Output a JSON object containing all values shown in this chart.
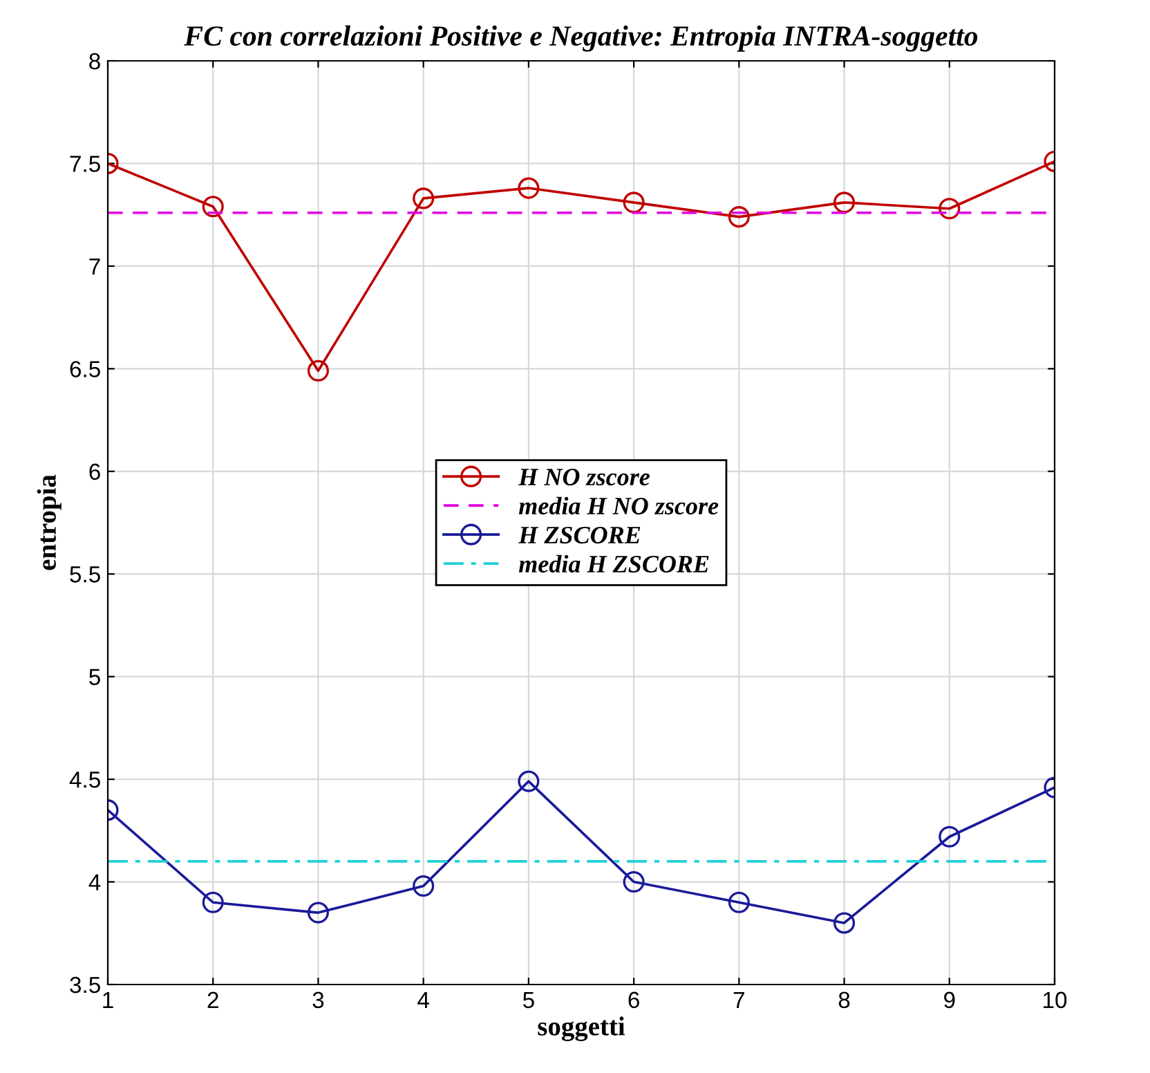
{
  "chart_data": {
    "type": "line",
    "title": "FC con correlazioni Positive e Negative: Entropia INTRA-soggetto",
    "xlabel": "soggetti",
    "ylabel": "entropia",
    "x": [
      1,
      2,
      3,
      4,
      5,
      6,
      7,
      8,
      9,
      10
    ],
    "series": [
      {
        "name": "H NO zscore",
        "color": "#c00000",
        "marker": "circle",
        "line_style": "solid",
        "values": [
          7.5,
          7.29,
          6.49,
          7.33,
          7.38,
          7.31,
          7.24,
          7.31,
          7.28,
          7.51
        ]
      },
      {
        "name": "media H NO zscore",
        "color": "#e000e0",
        "marker": "none",
        "line_style": "dashed",
        "values": [
          7.26,
          7.26,
          7.26,
          7.26,
          7.26,
          7.26,
          7.26,
          7.26,
          7.26,
          7.26
        ]
      },
      {
        "name": "H ZSCORE",
        "color": "#1a1a9a",
        "marker": "circle",
        "line_style": "solid",
        "values": [
          4.35,
          3.9,
          3.85,
          3.98,
          4.49,
          4.0,
          3.9,
          3.8,
          4.22,
          4.46
        ]
      },
      {
        "name": "media H ZSCORE",
        "color": "#20d0d8",
        "marker": "none",
        "line_style": "dashdot",
        "values": [
          4.1,
          4.1,
          4.1,
          4.1,
          4.1,
          4.1,
          4.1,
          4.1,
          4.1,
          4.1
        ]
      }
    ],
    "xlim": [
      1,
      10
    ],
    "xticks": [
      1,
      2,
      3,
      4,
      5,
      6,
      7,
      8,
      9,
      10
    ],
    "ylim": [
      3.5,
      8
    ],
    "yticks": [
      3.5,
      4,
      4.5,
      5,
      5.5,
      6,
      6.5,
      7,
      7.5,
      8
    ],
    "grid": true,
    "legend": "center"
  }
}
